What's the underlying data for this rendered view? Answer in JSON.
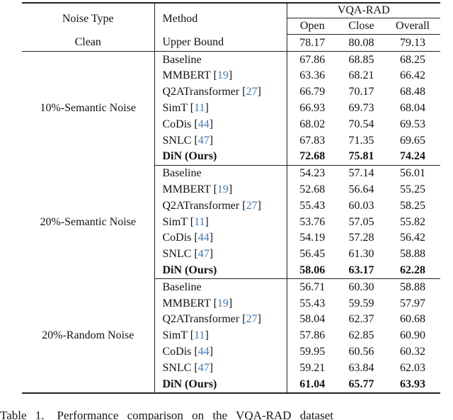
{
  "table": {
    "header": {
      "noise_type": "Noise Type",
      "method": "Method",
      "group": "VQA-RAD",
      "columns": [
        "Open",
        "Close",
        "Overall"
      ]
    },
    "clean_row": {
      "noise": "Clean",
      "method": "Upper Bound",
      "values": [
        "78.17",
        "80.08",
        "79.13"
      ]
    },
    "sections": [
      {
        "noise": "10%-Semantic Noise",
        "rows": [
          {
            "method": "Baseline",
            "cite": "",
            "bold": false,
            "values": [
              "67.86",
              "68.85",
              "68.25"
            ]
          },
          {
            "method": "MMBERT",
            "cite": "19",
            "bold": false,
            "values": [
              "63.36",
              "68.21",
              "66.42"
            ]
          },
          {
            "method": "Q2ATransformer",
            "cite": "27",
            "bold": false,
            "values": [
              "66.79",
              "70.17",
              "68.48"
            ]
          },
          {
            "method": "SimT",
            "cite": "11",
            "bold": false,
            "values": [
              "66.93",
              "69.73",
              "68.04"
            ]
          },
          {
            "method": "CoDis",
            "cite": "44",
            "bold": false,
            "values": [
              "68.02",
              "70.54",
              "69.53"
            ]
          },
          {
            "method": "SNLC",
            "cite": "47",
            "bold": false,
            "values": [
              "67.83",
              "71.35",
              "69.65"
            ]
          },
          {
            "method": "DiN (Ours)",
            "cite": "",
            "bold": true,
            "values": [
              "72.68",
              "75.81",
              "74.24"
            ]
          }
        ]
      },
      {
        "noise": "20%-Semantic Noise",
        "rows": [
          {
            "method": "Baseline",
            "cite": "",
            "bold": false,
            "values": [
              "54.23",
              "57.14",
              "56.01"
            ]
          },
          {
            "method": "MMBERT",
            "cite": "19",
            "bold": false,
            "values": [
              "52.68",
              "56.64",
              "55.25"
            ]
          },
          {
            "method": "Q2ATransformer",
            "cite": "27",
            "bold": false,
            "values": [
              "55.43",
              "60.03",
              "58.25"
            ]
          },
          {
            "method": "SimT",
            "cite": "11",
            "bold": false,
            "values": [
              "53.76",
              "57.05",
              "55.82"
            ]
          },
          {
            "method": "CoDis",
            "cite": "44",
            "bold": false,
            "values": [
              "54.19",
              "57.28",
              "56.42"
            ]
          },
          {
            "method": "SNLC",
            "cite": "47",
            "bold": false,
            "values": [
              "56.45",
              "61.30",
              "58.88"
            ]
          },
          {
            "method": "DiN (Ours)",
            "cite": "",
            "bold": true,
            "values": [
              "58.06",
              "63.17",
              "62.28"
            ]
          }
        ]
      },
      {
        "noise": "20%-Random Noise",
        "rows": [
          {
            "method": "Baseline",
            "cite": "",
            "bold": false,
            "values": [
              "56.71",
              "60.30",
              "58.88"
            ]
          },
          {
            "method": "MMBERT",
            "cite": "19",
            "bold": false,
            "values": [
              "55.43",
              "59.59",
              "57.97"
            ]
          },
          {
            "method": "Q2ATransformer",
            "cite": "27",
            "bold": false,
            "values": [
              "58.04",
              "62.37",
              "60.68"
            ]
          },
          {
            "method": "SimT",
            "cite": "11",
            "bold": false,
            "values": [
              "57.86",
              "62.85",
              "60.90"
            ]
          },
          {
            "method": "CoDis",
            "cite": "44",
            "bold": false,
            "values": [
              "59.95",
              "60.56",
              "60.32"
            ]
          },
          {
            "method": "SNLC",
            "cite": "47",
            "bold": false,
            "values": [
              "59.21",
              "63.84",
              "62.03"
            ]
          },
          {
            "method": "DiN (Ours)",
            "cite": "",
            "bold": true,
            "values": [
              "61.04",
              "65.77",
              "63.93"
            ]
          }
        ]
      }
    ]
  },
  "caption": {
    "label": "Table 1.",
    "text": "Performance comparison on the VQA-RAD dataset"
  },
  "colors": {
    "citation": "#3c78be",
    "rule": "#232323"
  }
}
